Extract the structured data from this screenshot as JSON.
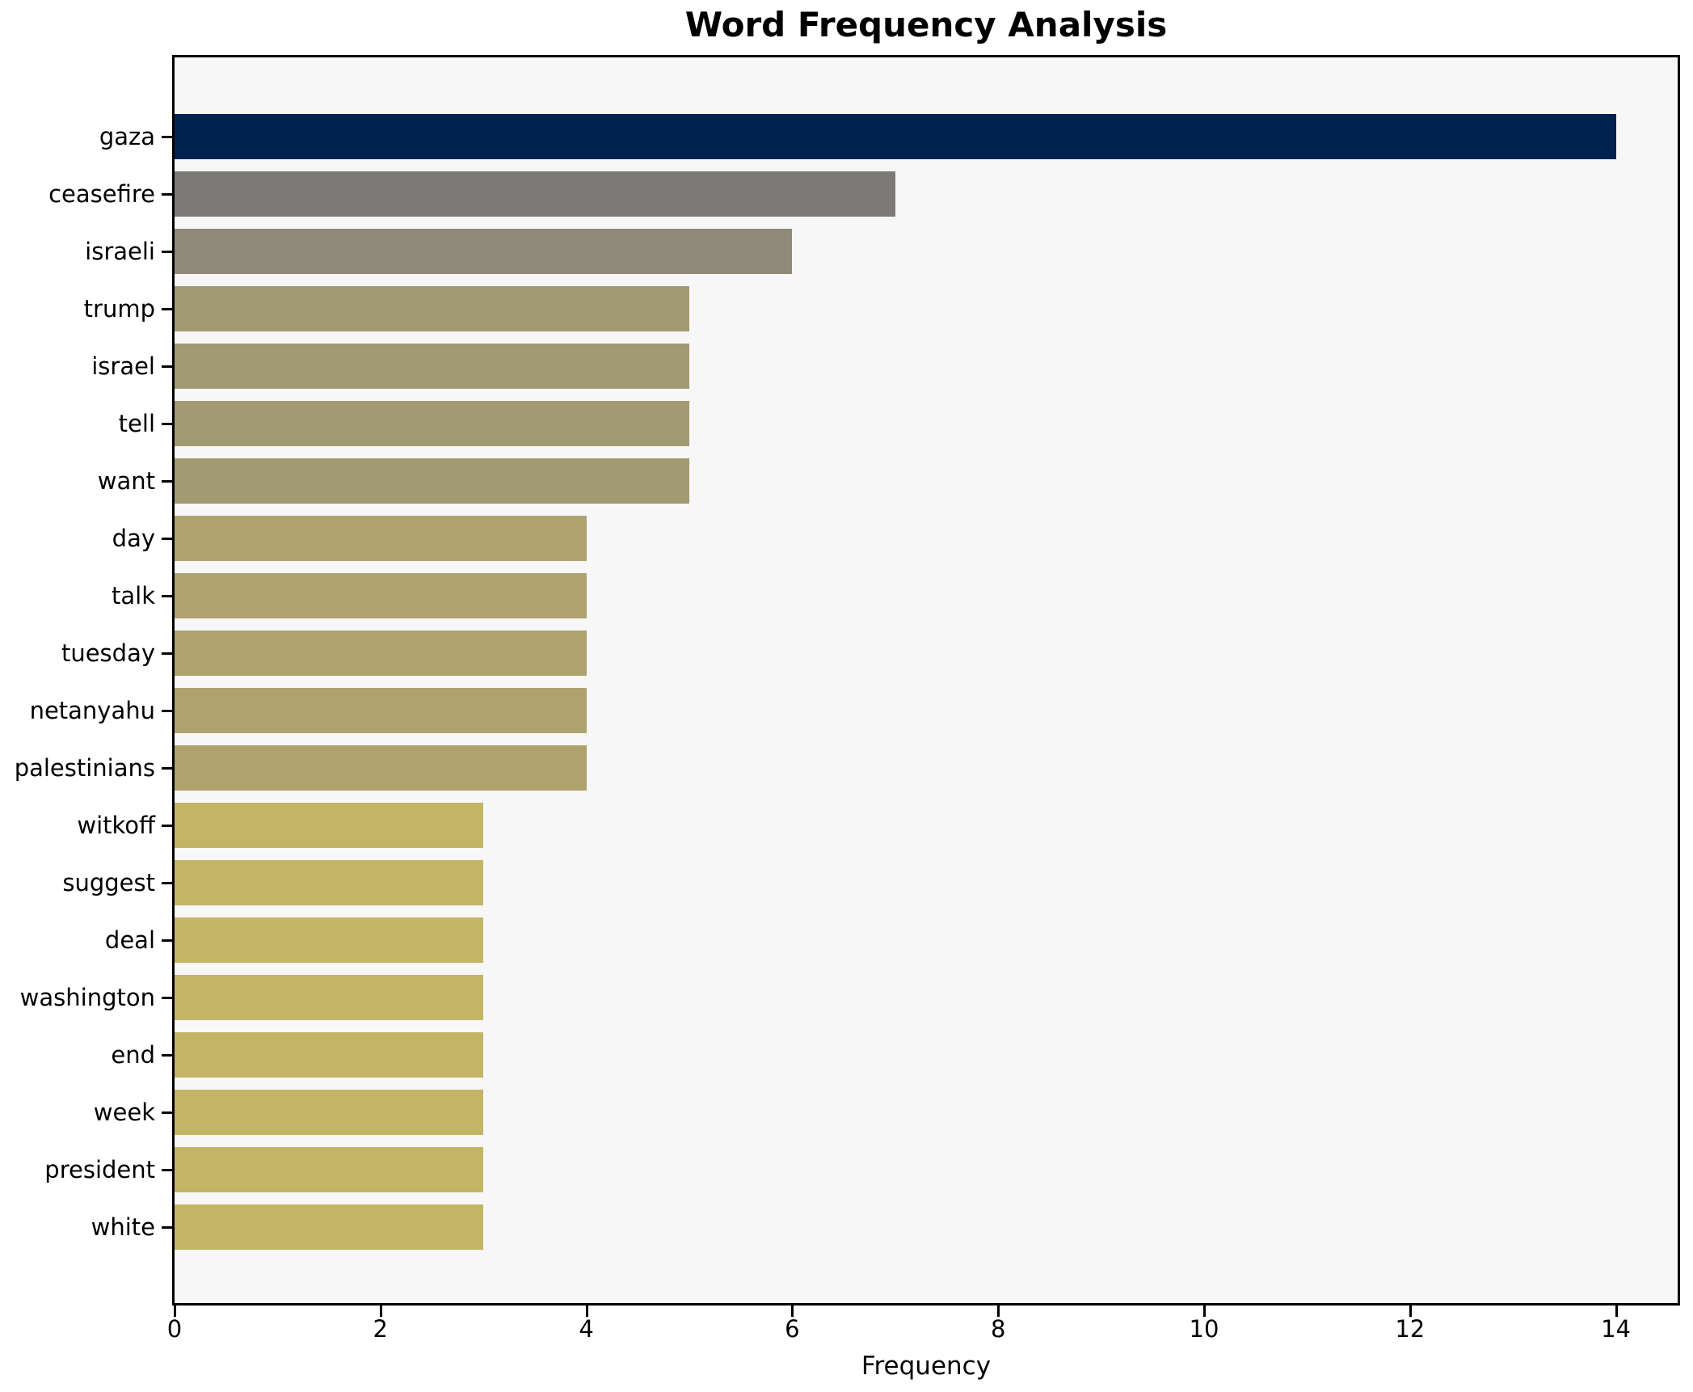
{
  "title": "Word Frequency Analysis",
  "chart_data": {
    "type": "bar",
    "orientation": "horizontal",
    "title": "Word Frequency Analysis",
    "xlabel": "Frequency",
    "ylabel": "",
    "categories": [
      "gaza",
      "ceasefire",
      "israeli",
      "trump",
      "israel",
      "tell",
      "want",
      "day",
      "talk",
      "tuesday",
      "netanyahu",
      "palestinians",
      "witkoff",
      "suggest",
      "deal",
      "washington",
      "end",
      "week",
      "president",
      "white"
    ],
    "values": [
      14,
      7,
      6,
      5,
      5,
      5,
      5,
      4,
      4,
      4,
      4,
      4,
      3,
      3,
      3,
      3,
      3,
      3,
      3,
      3
    ],
    "bar_colors": [
      "#00224e",
      "#7b7a77",
      "#8f8a79",
      "#a19a73",
      "#a19a73",
      "#a19a73",
      "#a19a73",
      "#aea26f",
      "#aea26f",
      "#aea26f",
      "#aea26f",
      "#aea26f",
      "#c4b465",
      "#c4b465",
      "#c4b465",
      "#c4b465",
      "#c4b465",
      "#c4b465",
      "#c4b465",
      "#c4b465"
    ],
    "xlim": [
      0,
      14.6
    ],
    "xticks": [
      0,
      2,
      4,
      6,
      8,
      10,
      12,
      14
    ],
    "xtick_labels": [
      "0",
      "2",
      "4",
      "6",
      "8",
      "10",
      "12",
      "14"
    ],
    "grid": false,
    "legend_position": "none",
    "plot_background": "#f7f7f7",
    "figure_background": "#ffffff",
    "spine_color": "#000000",
    "text_color": "#000000"
  }
}
